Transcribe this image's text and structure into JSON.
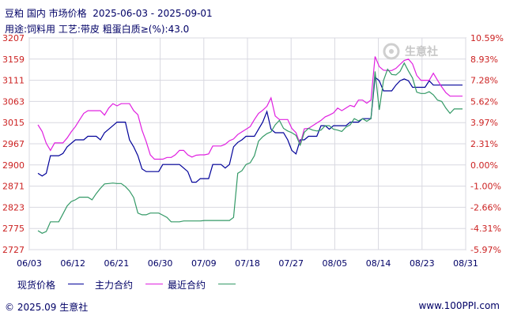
{
  "header": {
    "title": "豆粕 国内 市场价格  2025-06-03 - 2025-09-01",
    "subtitle": "用途:饲料用 工艺:带皮 粗蛋白质≥(%):43.0"
  },
  "watermark": "生意社",
  "footer": {
    "left": "© 2025.09 生意社",
    "right": "www.100PPI.com"
  },
  "colors": {
    "spot": "#000099",
    "main": "#e020e0",
    "nearest": "#339966",
    "axis_left": "#cc2222",
    "axis_right": "#cc2222",
    "grid": "#d8d8e0"
  },
  "chart_data": {
    "type": "line",
    "x_ticks": [
      "06/03",
      "06/12",
      "06/21",
      "06/30",
      "07/09",
      "07/18",
      "07/27",
      "08/05",
      "08/14",
      "08/23",
      "08/31"
    ],
    "y_left_ticks": [
      "3207",
      "3159",
      "3111",
      "3063",
      "3015",
      "2967",
      "2900",
      "2871",
      "2823",
      "2775",
      "2727"
    ],
    "y_right_ticks": [
      "10.59%",
      "8.93%",
      "7.28%",
      "5.62%",
      "3.97%",
      "2.31%",
      "0.00%",
      "-1.00%",
      "-2.66%",
      "-4.31%",
      "-5.97%"
    ],
    "ylim": [
      2727,
      3207
    ],
    "legend": [
      "现货价格",
      "主力合约",
      "最近合约"
    ],
    "series": [
      {
        "name": "现货价格",
        "values": [
          2900,
          2894,
          2900,
          2940,
          2940,
          2940,
          2945,
          2960,
          2968,
          2976,
          2976,
          2976,
          2984,
          2984,
          2984,
          2976,
          2992,
          3000,
          3008,
          3016,
          3016,
          3016,
          2976,
          2960,
          2940,
          2910,
          2904,
          2904,
          2904,
          2904,
          2920,
          2920,
          2920,
          2920,
          2920,
          2912,
          2904,
          2880,
          2880,
          2888,
          2888,
          2888,
          2920,
          2920,
          2920,
          2912,
          2920,
          2960,
          2970,
          2976,
          2984,
          2984,
          2984,
          3000,
          3016,
          3040,
          3000,
          2992,
          2992,
          2992,
          2976,
          2952,
          2944,
          2976,
          2976,
          2984,
          2984,
          2984,
          3008,
          3008,
          3000,
          3008,
          3008,
          3008,
          3008,
          3016,
          3016,
          3016,
          3024,
          3024,
          3024,
          3118,
          3110,
          3087,
          3087,
          3087,
          3100,
          3110,
          3114,
          3110,
          3095,
          3095,
          3095,
          3095,
          3110,
          3100,
          3100,
          3100,
          3100,
          3100,
          3100,
          3100,
          3100
        ]
      },
      {
        "name": "主力合约",
        "values": [
          3010,
          2995,
          2968,
          2952,
          2969,
          2969,
          2969,
          2980,
          2994,
          3006,
          3021,
          3036,
          3042,
          3042,
          3042,
          3042,
          3032,
          3048,
          3058,
          3053,
          3058,
          3058,
          3058,
          3042,
          3033,
          2998,
          2972,
          2942,
          2932,
          2932,
          2932,
          2936,
          2936,
          2942,
          2952,
          2952,
          2942,
          2937,
          2941,
          2942,
          2942,
          2944,
          2962,
          2962,
          2962,
          2966,
          2974,
          2978,
          2988,
          2994,
          3000,
          3006,
          3022,
          3036,
          3043,
          3052,
          3071,
          3030,
          3022,
          3022,
          3022,
          3002,
          2992,
          2966,
          3001,
          3002,
          3008,
          3014,
          3020,
          3028,
          3032,
          3037,
          3048,
          3042,
          3048,
          3054,
          3051,
          3066,
          3066,
          3059,
          3066,
          3165,
          3142,
          3134,
          3133,
          3133,
          3138,
          3147,
          3156,
          3159,
          3148,
          3122,
          3111,
          3111,
          3111,
          3127,
          3111,
          3096,
          3083,
          3075,
          3075,
          3075,
          3075
        ]
      },
      {
        "name": "最近合约",
        "values": [
          2770,
          2764,
          2768,
          2790,
          2790,
          2790,
          2808,
          2826,
          2836,
          2840,
          2846,
          2846,
          2846,
          2840,
          2854,
          2866,
          2876,
          2877,
          2878,
          2877,
          2877,
          2870,
          2860,
          2845,
          2810,
          2806,
          2806,
          2810,
          2810,
          2810,
          2805,
          2800,
          2790,
          2790,
          2790,
          2792,
          2792,
          2792,
          2792,
          2792,
          2793,
          2793,
          2793,
          2793,
          2793,
          2793,
          2793,
          2800,
          2900,
          2906,
          2920,
          2924,
          2940,
          2973,
          2983,
          2990,
          2994,
          3010,
          3020,
          3002,
          2996,
          2992,
          2986,
          2964,
          2993,
          3002,
          2998,
          2996,
          2998,
          3008,
          3008,
          3000,
          2998,
          2995,
          3005,
          3010,
          3024,
          3019,
          3024,
          3018,
          3024,
          3131,
          3044,
          3110,
          3136,
          3124,
          3123,
          3131,
          3150,
          3132,
          3116,
          3084,
          3081,
          3081,
          3085,
          3078,
          3066,
          3063,
          3048,
          3036,
          3046,
          3046,
          3046
        ]
      }
    ]
  }
}
